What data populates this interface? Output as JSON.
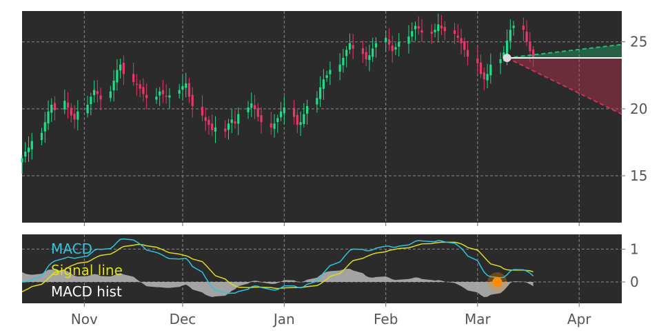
{
  "colors": {
    "panel_bg": "#2b2b2b",
    "grid": "#8a8a8a",
    "up": "#22dd88",
    "down": "#e8386a",
    "macd": "#2ec5e0",
    "signal": "#dddd22",
    "hist": "#b0b0b0",
    "marker": "#ff8c00",
    "last_price": "#dddddd",
    "forecast_up": "#1fbf7a",
    "forecast_down": "#cc3355"
  },
  "chart_data": [
    {
      "type": "candlestick",
      "x_axis": {
        "start_date": "2020-10-13",
        "end_date": "2021-04-14",
        "tick_labels": [
          {
            "label": "Nov",
            "date": "2020-11-01"
          },
          {
            "label": "Dec",
            "date": "2020-12-01"
          },
          {
            "label": "Jan",
            "date": "2021-01-01"
          },
          {
            "label": "Feb",
            "date": "2021-02-01"
          },
          {
            "label": "Mar",
            "date": "2021-03-01"
          },
          {
            "label": "Apr",
            "date": "2021-04-01"
          }
        ]
      },
      "y_axis": {
        "ylim": [
          11.5,
          27.3
        ],
        "ticks": [
          15,
          20,
          25
        ],
        "position": "right"
      },
      "grid": true,
      "closes": [
        16.3,
        16.8,
        17.1,
        17.6,
        18.2,
        19.0,
        19.8,
        20.3,
        19.9,
        20.6,
        20.1,
        19.5,
        19.2,
        19.8,
        20.3,
        20.9,
        21.4,
        21.1,
        20.7,
        21.3,
        22.1,
        22.9,
        23.3,
        22.6,
        22.0,
        21.8,
        21.5,
        21.1,
        20.8,
        20.9,
        21.3,
        21.1,
        20.9,
        21.0,
        21.4,
        21.7,
        21.9,
        20.9,
        20.2,
        19.5,
        19.1,
        18.8,
        18.4,
        18.6,
        18.3,
        18.9,
        19.2,
        18.9,
        19.6,
        20.1,
        20.4,
        20.0,
        19.4,
        19.0,
        18.6,
        18.9,
        19.3,
        19.8,
        20.1,
        19.4,
        18.8,
        19.0,
        19.6,
        20.2,
        20.8,
        21.6,
        22.2,
        22.5,
        22.9,
        23.3,
        23.8,
        24.4,
        24.9,
        24.5,
        24.1,
        23.7,
        24.0,
        24.5,
        24.9,
        25.3,
        24.8,
        24.3,
        24.6,
        25.0,
        25.4,
        25.8,
        26.2,
        26.0,
        25.7,
        25.6,
        25.9,
        26.3,
        26.0,
        25.8,
        25.6,
        25.3,
        24.9,
        24.4,
        23.9,
        23.4,
        22.6,
        22.2,
        22.6,
        23.3,
        23.7,
        24.2,
        25.1,
        25.9,
        26.2,
        25.9,
        25.0,
        24.3,
        23.8
      ]
    },
    {
      "type": "line",
      "title": "",
      "y_axis": {
        "ylim": [
          -0.65,
          1.45
        ],
        "ticks": [
          0,
          1
        ],
        "position": "right"
      },
      "grid": true,
      "legend": {
        "placement": "top-left",
        "entries": [
          {
            "label": "MACD",
            "series": "macd"
          },
          {
            "label": "Signal line",
            "series": "signal"
          },
          {
            "label": "MACD hist",
            "series": "hist"
          }
        ]
      },
      "series": [
        {
          "name": "MACD",
          "key": "macd",
          "values": [
            0.0,
            0.0,
            0.03,
            0.08,
            0.18,
            0.32,
            0.48,
            0.58,
            0.64,
            0.72,
            0.76,
            0.74,
            0.72,
            0.74,
            0.79,
            0.87,
            0.96,
            1.0,
            0.99,
            1.02,
            1.1,
            1.21,
            1.3,
            1.31,
            1.28,
            1.22,
            1.15,
            1.07,
            0.97,
            0.9,
            0.86,
            0.81,
            0.75,
            0.71,
            0.7,
            0.71,
            0.72,
            0.62,
            0.47,
            0.3,
            0.13,
            -0.02,
            -0.16,
            -0.25,
            -0.33,
            -0.35,
            -0.34,
            -0.34,
            -0.29,
            -0.22,
            -0.15,
            -0.12,
            -0.13,
            -0.17,
            -0.23,
            -0.25,
            -0.23,
            -0.18,
            -0.12,
            -0.12,
            -0.16,
            -0.18,
            -0.14,
            -0.07,
            0.02,
            0.15,
            0.28,
            0.39,
            0.5,
            0.61,
            0.73,
            0.85,
            0.96,
            1.0,
            0.99,
            0.95,
            0.95,
            0.98,
            1.03,
            1.09,
            1.09,
            1.06,
            1.06,
            1.09,
            1.13,
            1.18,
            1.24,
            1.26,
            1.25,
            1.23,
            1.23,
            1.26,
            1.25,
            1.22,
            1.18,
            1.11,
            1.03,
            0.92,
            0.79,
            0.65,
            0.47,
            0.3,
            0.2,
            0.16,
            0.13,
            0.14,
            0.22,
            0.33,
            0.38,
            0.37,
            0.33,
            0.27,
            0.18
          ]
        },
        {
          "name": "Signal line",
          "key": "signal",
          "values": [
            -0.3,
            -0.25,
            -0.2,
            -0.14,
            -0.07,
            0.01,
            0.11,
            0.2,
            0.29,
            0.37,
            0.44,
            0.49,
            0.53,
            0.57,
            0.61,
            0.66,
            0.72,
            0.77,
            0.81,
            0.85,
            0.9,
            0.96,
            1.03,
            1.08,
            1.12,
            1.14,
            1.14,
            1.13,
            1.1,
            1.06,
            1.02,
            0.98,
            0.93,
            0.89,
            0.85,
            0.82,
            0.8,
            0.76,
            0.7,
            0.62,
            0.52,
            0.41,
            0.3,
            0.19,
            0.09,
            0.0,
            -0.07,
            -0.12,
            -0.16,
            -0.17,
            -0.17,
            -0.16,
            -0.16,
            -0.16,
            -0.17,
            -0.19,
            -0.2,
            -0.19,
            -0.18,
            -0.17,
            -0.17,
            -0.17,
            -0.16,
            -0.14,
            -0.11,
            -0.06,
            0.01,
            0.08,
            0.17,
            0.26,
            0.35,
            0.45,
            0.56,
            0.65,
            0.72,
            0.77,
            0.81,
            0.85,
            0.88,
            0.92,
            0.96,
            0.98,
            1.0,
            1.02,
            1.04,
            1.07,
            1.1,
            1.13,
            1.16,
            1.17,
            1.19,
            1.2,
            1.21,
            1.21,
            1.21,
            1.19,
            1.16,
            1.11,
            1.05,
            0.97,
            0.87,
            0.76,
            0.65,
            0.55,
            0.47,
            0.4,
            0.37,
            0.36,
            0.36,
            0.36,
            0.35,
            0.34,
            0.31
          ]
        },
        {
          "name": "MACD hist",
          "key": "hist",
          "values": [
            0.3,
            0.25,
            0.23,
            0.22,
            0.25,
            0.31,
            0.37,
            0.38,
            0.35,
            0.35,
            0.32,
            0.25,
            0.19,
            0.17,
            0.18,
            0.21,
            0.24,
            0.23,
            0.18,
            0.17,
            0.2,
            0.25,
            0.27,
            0.23,
            0.16,
            0.08,
            0.01,
            -0.06,
            -0.13,
            -0.16,
            -0.16,
            -0.17,
            -0.18,
            -0.18,
            -0.15,
            -0.11,
            -0.08,
            -0.14,
            -0.23,
            -0.32,
            -0.39,
            -0.43,
            -0.46,
            -0.44,
            -0.42,
            -0.35,
            -0.27,
            -0.22,
            -0.13,
            -0.05,
            0.02,
            0.04,
            0.03,
            -0.01,
            -0.06,
            -0.06,
            -0.03,
            0.01,
            0.06,
            0.05,
            0.01,
            -0.01,
            0.02,
            0.07,
            0.13,
            0.21,
            0.27,
            0.31,
            0.33,
            0.35,
            0.38,
            0.4,
            0.4,
            0.35,
            0.27,
            0.18,
            0.14,
            0.13,
            0.15,
            0.17,
            0.13,
            0.08,
            0.06,
            0.07,
            0.09,
            0.11,
            0.14,
            0.13,
            0.09,
            0.06,
            0.04,
            0.06,
            0.04,
            0.01,
            -0.03,
            -0.08,
            -0.13,
            -0.19,
            -0.26,
            -0.32,
            -0.4,
            -0.46,
            -0.45,
            -0.39,
            -0.34,
            -0.26,
            -0.15,
            -0.03,
            0.02,
            0.01,
            -0.02,
            -0.07,
            -0.13
          ]
        }
      ],
      "marker": {
        "date": "2021-03-07",
        "value": 0.0
      }
    }
  ],
  "forecast": {
    "start_date": "2021-03-10",
    "end_date": "2021-04-14",
    "start_price": 23.8,
    "upper_end": 24.8,
    "lower_end": 19.6
  }
}
